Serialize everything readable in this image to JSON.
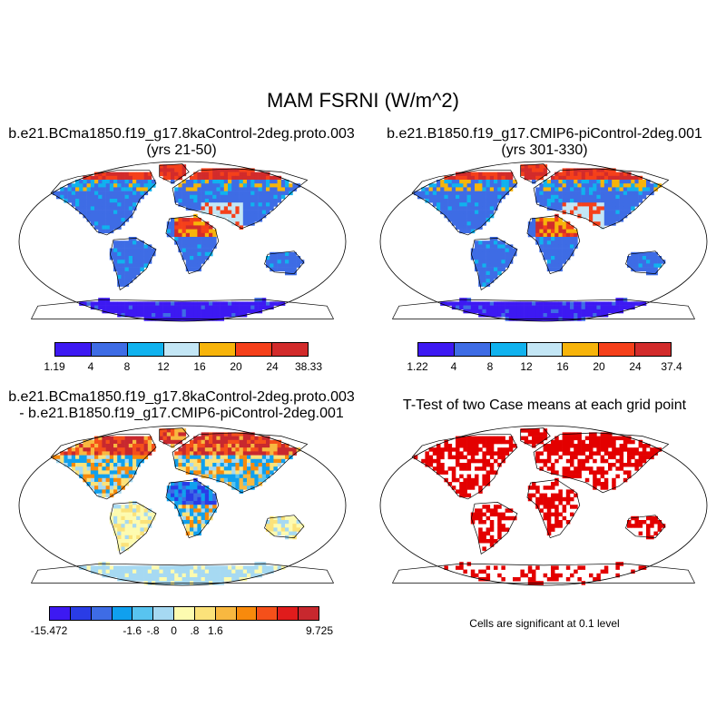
{
  "figure": {
    "title": "MAM FSRNI (W/m^2)",
    "note": "Cells are significant at 0.1 level"
  },
  "colors": {
    "ocean": "#ffffff",
    "outline": "#000000",
    "significant": "#e30000"
  },
  "chart_data": [
    {
      "type": "heatmap",
      "projection": "robinson",
      "title_line1": "b.e21.BCma1850.f19_g17.8kaControl-2deg.proto.003",
      "title_line2": "(yrs 21-50)",
      "colorbar": {
        "labels": [
          "1.19",
          "4",
          "8",
          "12",
          "16",
          "20",
          "24",
          "38.33"
        ],
        "colors": [
          "#3d19f2",
          "#3e6ce5",
          "#10b2ee",
          "#c3e6f5",
          "#f7b40a",
          "#f5401a",
          "#d22b2b"
        ]
      }
    },
    {
      "type": "heatmap",
      "projection": "robinson",
      "title_line1": "b.e21.B1850.f19_g17.CMIP6-piControl-2deg.001",
      "title_line2": "(yrs 301-330)",
      "colorbar": {
        "labels": [
          "1.22",
          "4",
          "8",
          "12",
          "16",
          "20",
          "24",
          "37.4"
        ],
        "colors": [
          "#3d19f2",
          "#3e6ce5",
          "#10b2ee",
          "#c3e6f5",
          "#f7b40a",
          "#f5401a",
          "#d22b2b"
        ]
      }
    },
    {
      "type": "heatmap",
      "projection": "robinson",
      "title_line1": "b.e21.BCma1850.f19_g17.8kaControl-2deg.proto.003",
      "title_line2": "- b.e21.B1850.f19_g17.CMIP6-piControl-2deg.001",
      "colorbar": {
        "labels": [
          "-15.472",
          "-1.6",
          "-.8",
          "0",
          ".8",
          "1.6",
          "9.725"
        ],
        "colors": [
          "#3d19f2",
          "#2a3ce6",
          "#3e6ce5",
          "#10a0ee",
          "#58c4f0",
          "#a6d9f2",
          "#fdfbb0",
          "#fbe27a",
          "#f8b840",
          "#f88a0c",
          "#f5501a",
          "#e01c1c",
          "#c8282e"
        ]
      }
    },
    {
      "type": "heatmap",
      "projection": "robinson",
      "title_line1": "T-Test of two Case means at each grid point"
    }
  ]
}
